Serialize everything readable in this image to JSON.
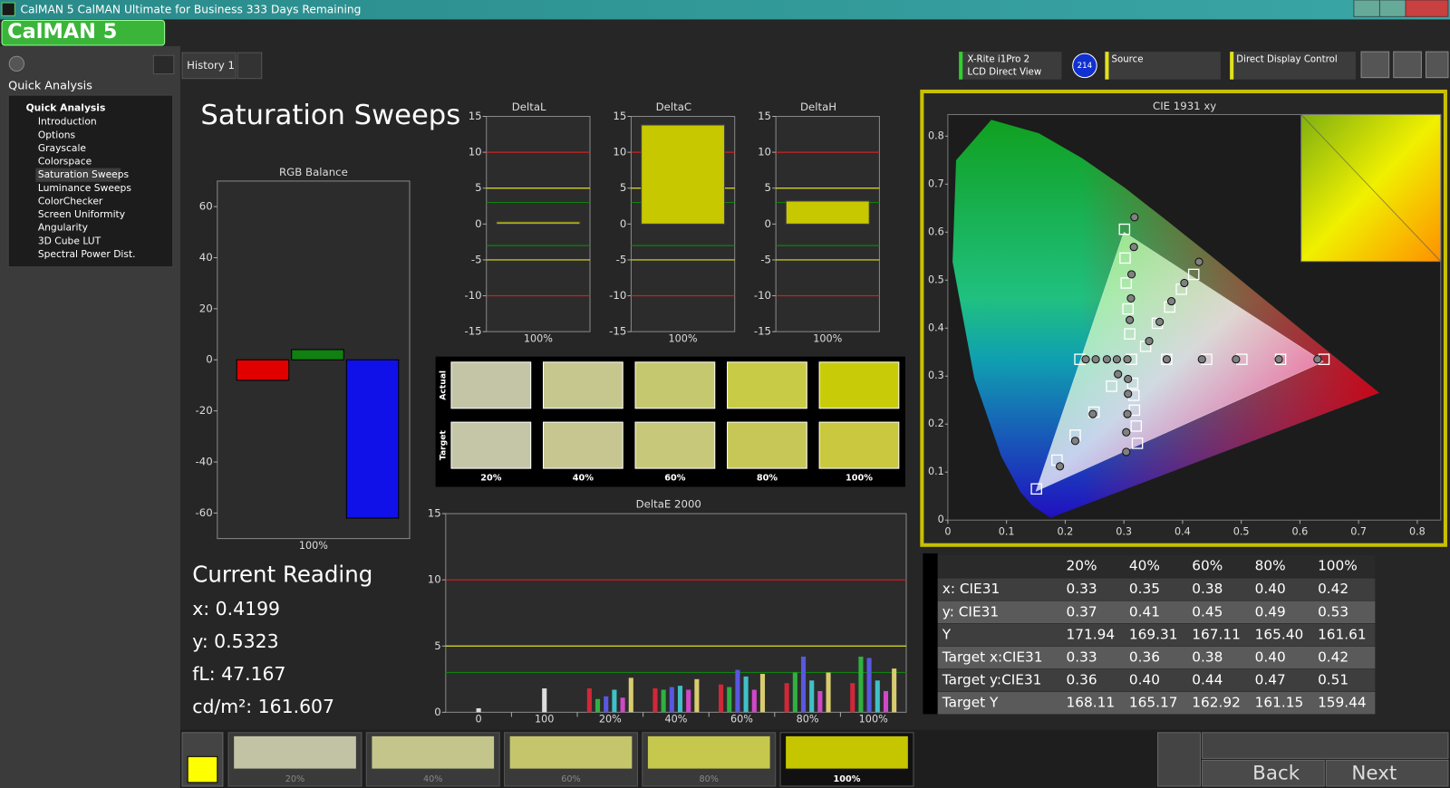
{
  "window": {
    "title": "CalMAN 5 CalMAN Ultimate for Business 333 Days Remaining",
    "logo": "CalMAN 5"
  },
  "sidebar": {
    "header": "Quick Analysis",
    "tree": {
      "root": "Quick Analysis",
      "items": [
        "Introduction",
        "Options",
        "Grayscale",
        "Colorspace",
        "Saturation Sweeps",
        "Luminance Sweeps",
        "ColorChecker",
        "Screen Uniformity",
        "Angularity",
        "3D Cube LUT",
        "Spectral Power Dist."
      ],
      "selected": 4
    }
  },
  "tabs": [
    "History 1"
  ],
  "toolbar": {
    "meter": "X-Rite i1Pro 2",
    "meter_mode": "LCD Direct View",
    "badge": "214",
    "source": "Source",
    "display": "Direct Display Control"
  },
  "page_title": "Saturation Sweeps",
  "rgb_balance": {
    "type": "bar",
    "title": "RGB Balance",
    "categories": [
      "100%"
    ],
    "series": [
      {
        "color": "#e00000",
        "values": [
          -8
        ]
      },
      {
        "color": "#108010",
        "values": [
          4
        ]
      },
      {
        "color": "#1010e8",
        "values": [
          -62
        ]
      }
    ],
    "ylim": [
      -70,
      70
    ],
    "yticks": [
      -60,
      -40,
      -20,
      0,
      20,
      40,
      60
    ]
  },
  "delta_charts": [
    {
      "type": "bar",
      "title": "DeltaL",
      "categories": [
        "100%"
      ],
      "values": [
        0.3
      ],
      "color": "#c8c800",
      "ylim": [
        -15,
        15
      ],
      "yticks": [
        -15,
        -10,
        -5,
        0,
        5,
        10,
        15
      ],
      "reference_lines": [
        {
          "value": 10,
          "color": "#d02020"
        },
        {
          "value": -10,
          "color": "#d02020"
        },
        {
          "value": 5,
          "color": "#e0e020"
        },
        {
          "value": -5,
          "color": "#e0e020"
        },
        {
          "value": 3,
          "color": "#108010"
        },
        {
          "value": -3,
          "color": "#108010"
        }
      ]
    },
    {
      "type": "bar",
      "title": "DeltaC",
      "categories": [
        "100%"
      ],
      "values": [
        13.8
      ],
      "color": "#c8c800",
      "ylim": [
        -15,
        15
      ],
      "yticks": [
        -15,
        -10,
        -5,
        0,
        5,
        10,
        15
      ],
      "reference_lines": [
        {
          "value": 10,
          "color": "#d02020"
        },
        {
          "value": -10,
          "color": "#d02020"
        },
        {
          "value": 5,
          "color": "#e0e020"
        },
        {
          "value": -5,
          "color": "#e0e020"
        },
        {
          "value": 3,
          "color": "#108010"
        },
        {
          "value": -3,
          "color": "#108010"
        }
      ]
    },
    {
      "type": "bar",
      "title": "DeltaH",
      "categories": [
        "100%"
      ],
      "values": [
        3.2
      ],
      "color": "#c8c800",
      "ylim": [
        -15,
        15
      ],
      "yticks": [
        -15,
        -10,
        -5,
        0,
        5,
        10,
        15
      ],
      "reference_lines": [
        {
          "value": 10,
          "color": "#d02020"
        },
        {
          "value": -10,
          "color": "#d02020"
        },
        {
          "value": 5,
          "color": "#e0e020"
        },
        {
          "value": -5,
          "color": "#e0e020"
        },
        {
          "value": 3,
          "color": "#108010"
        },
        {
          "value": -3,
          "color": "#108010"
        }
      ]
    }
  ],
  "swatches": {
    "row_labels": [
      "Actual",
      "Target"
    ],
    "columns": [
      "20%",
      "40%",
      "60%",
      "80%",
      "100%"
    ],
    "actual_colors": [
      "#c3c5a6",
      "#c5c78f",
      "#c6c870",
      "#c8cb45",
      "#c8cc08"
    ],
    "target_colors": [
      "#c5c6a8",
      "#c7c691",
      "#c8c87a",
      "#c7c758",
      "#c9c83e"
    ]
  },
  "deltae": {
    "type": "bar",
    "title": "DeltaE 2000",
    "categories": [
      "0",
      "100",
      "20%",
      "40%",
      "60%",
      "80%",
      "100%"
    ],
    "series": [
      {
        "color": "#dddddd",
        "values": [
          0.3,
          1.8,
          null,
          null,
          null,
          null,
          null
        ]
      },
      {
        "color": "#d02838",
        "values": [
          null,
          null,
          1.8,
          1.8,
          2.1,
          2.2,
          2.2
        ]
      },
      {
        "color": "#30b040",
        "values": [
          null,
          null,
          1.0,
          1.7,
          1.9,
          3.0,
          4.2
        ]
      },
      {
        "color": "#5858e0",
        "values": [
          null,
          null,
          1.2,
          1.9,
          3.2,
          4.2,
          4.1
        ]
      },
      {
        "color": "#40c0c8",
        "values": [
          null,
          null,
          1.7,
          2.0,
          2.7,
          2.4,
          2.4
        ]
      },
      {
        "color": "#d048c8",
        "values": [
          null,
          null,
          1.1,
          1.7,
          1.7,
          1.6,
          1.6
        ]
      },
      {
        "color": "#d8cc70",
        "values": [
          null,
          null,
          2.6,
          2.5,
          2.9,
          3.0,
          3.3
        ]
      }
    ],
    "ylim": [
      0,
      15
    ],
    "yticks": [
      0,
      5,
      10,
      15
    ],
    "reference_lines": [
      {
        "value": 10,
        "color": "#d02020"
      },
      {
        "value": 5,
        "color": "#e0e020"
      },
      {
        "value": 3,
        "color": "#108010"
      }
    ]
  },
  "cie": {
    "type": "scatter",
    "title": "CIE 1931 xy",
    "xlim": [
      0,
      0.84
    ],
    "ylim": [
      0,
      0.845
    ],
    "xticks": [
      0,
      0.1,
      0.2,
      0.3,
      0.4,
      0.5,
      0.6,
      0.7,
      0.8
    ],
    "yticks": [
      0,
      0.1,
      0.2,
      0.3,
      0.4,
      0.5,
      0.6,
      0.7,
      0.8
    ],
    "gamut": {
      "x": [
        0.64,
        0.3,
        0.15
      ],
      "y": [
        0.33,
        0.6,
        0.06
      ]
    },
    "series": [
      {
        "marker": "square",
        "color": "#ffffff",
        "x": [
          0.225,
          0.313,
          0.373,
          0.441,
          0.501,
          0.567,
          0.641,
          0.301,
          0.302,
          0.304,
          0.307,
          0.31,
          0.279,
          0.249,
          0.217,
          0.186,
          0.151,
          0.315,
          0.317,
          0.318,
          0.321,
          0.323,
          0.337,
          0.357,
          0.378,
          0.398,
          0.419
        ],
        "y": [
          0.335,
          0.335,
          0.335,
          0.335,
          0.335,
          0.335,
          0.335,
          0.606,
          0.546,
          0.494,
          0.44,
          0.388,
          0.279,
          0.225,
          0.177,
          0.125,
          0.065,
          0.285,
          0.26,
          0.229,
          0.196,
          0.16,
          0.362,
          0.41,
          0.444,
          0.481,
          0.512
        ]
      },
      {
        "marker": "circle",
        "color": "#808080",
        "x": [
          0.235,
          0.252,
          0.271,
          0.288,
          0.306,
          0.373,
          0.433,
          0.491,
          0.564,
          0.63,
          0.318,
          0.317,
          0.313,
          0.312,
          0.31,
          0.343,
          0.361,
          0.381,
          0.403,
          0.428,
          0.29,
          0.247,
          0.217,
          0.191,
          0.307,
          0.307,
          0.306,
          0.304,
          0.304
        ],
        "y": [
          0.335,
          0.335,
          0.335,
          0.335,
          0.335,
          0.335,
          0.335,
          0.335,
          0.335,
          0.335,
          0.631,
          0.569,
          0.512,
          0.462,
          0.417,
          0.373,
          0.413,
          0.456,
          0.494,
          0.538,
          0.304,
          0.221,
          0.165,
          0.112,
          0.294,
          0.263,
          0.221,
          0.183,
          0.142
        ]
      }
    ]
  },
  "current_reading": {
    "title": "Current Reading",
    "lines": [
      "x: 0.4199",
      "y: 0.5323",
      "fL: 47.167",
      "cd/m²: 161.607"
    ]
  },
  "table": {
    "columns": [
      "20%",
      "40%",
      "60%",
      "80%",
      "100%"
    ],
    "rows": [
      {
        "label": "x: CIE31",
        "cells": [
          "0.33",
          "0.35",
          "0.38",
          "0.40",
          "0.42"
        ]
      },
      {
        "label": "y: CIE31",
        "cells": [
          "0.37",
          "0.41",
          "0.45",
          "0.49",
          "0.53"
        ]
      },
      {
        "label": "Y",
        "cells": [
          "171.94",
          "169.31",
          "167.11",
          "165.40",
          "161.61"
        ]
      },
      {
        "label": "Target x:CIE31",
        "cells": [
          "0.33",
          "0.36",
          "0.38",
          "0.40",
          "0.42"
        ]
      },
      {
        "label": "Target y:CIE31",
        "cells": [
          "0.36",
          "0.40",
          "0.44",
          "0.47",
          "0.51"
        ]
      },
      {
        "label": "Target Y",
        "cells": [
          "168.11",
          "165.17",
          "162.92",
          "161.15",
          "159.44"
        ]
      }
    ]
  },
  "bottom_bar": {
    "swatch_labels": [
      "20%",
      "40%",
      "60%",
      "80%",
      "100%"
    ],
    "swatch_colors": [
      "#c2c2a4",
      "#c4c58a",
      "#c5c66c",
      "#c6c84d",
      "#c6c600"
    ],
    "selected": 4,
    "current_color": "#ffff00",
    "back": "Back",
    "next": "Next"
  }
}
